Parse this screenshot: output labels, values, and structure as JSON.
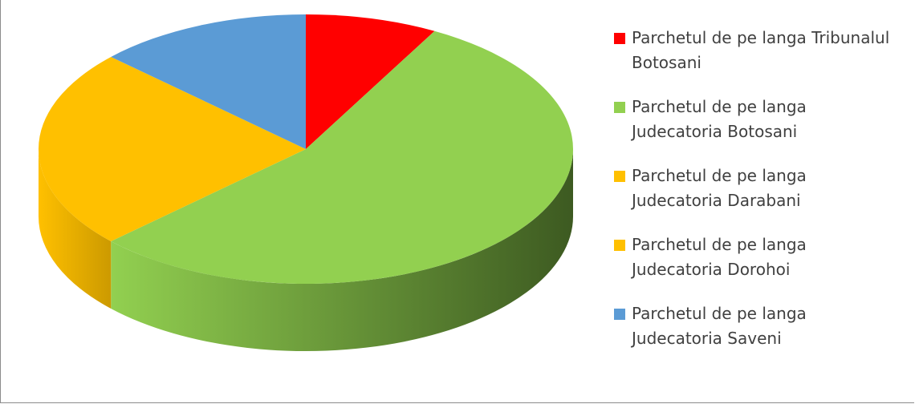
{
  "chart_data": {
    "type": "pie",
    "style": "3d",
    "title": "",
    "legend_position": "right",
    "slices": [
      {
        "label": "Parchetul de pe langa Tribunalul\nBotosani",
        "value": 8,
        "color": "#ff0000",
        "side_color": "#cc0000"
      },
      {
        "label": "Parchetul de pe langa\nJudecatoria Botosani",
        "value": 55,
        "color": "#92d050",
        "side_color": "#3d5a21"
      },
      {
        "label": "Parchetul de pe langa\nJudecatoria Darabani",
        "value": 12,
        "color": "#ffc000",
        "side_color": "#cc9a00"
      },
      {
        "label": "Parchetul de pe langa\nJudecatoria Dorohoi",
        "value": 12,
        "color": "#ffc000",
        "side_color": "#d9a300"
      },
      {
        "label": "Parchetul de pe langa\nJudecatoria Saveni",
        "value": 13,
        "color": "#5b9bd5",
        "side_color": "#41719c"
      }
    ]
  }
}
